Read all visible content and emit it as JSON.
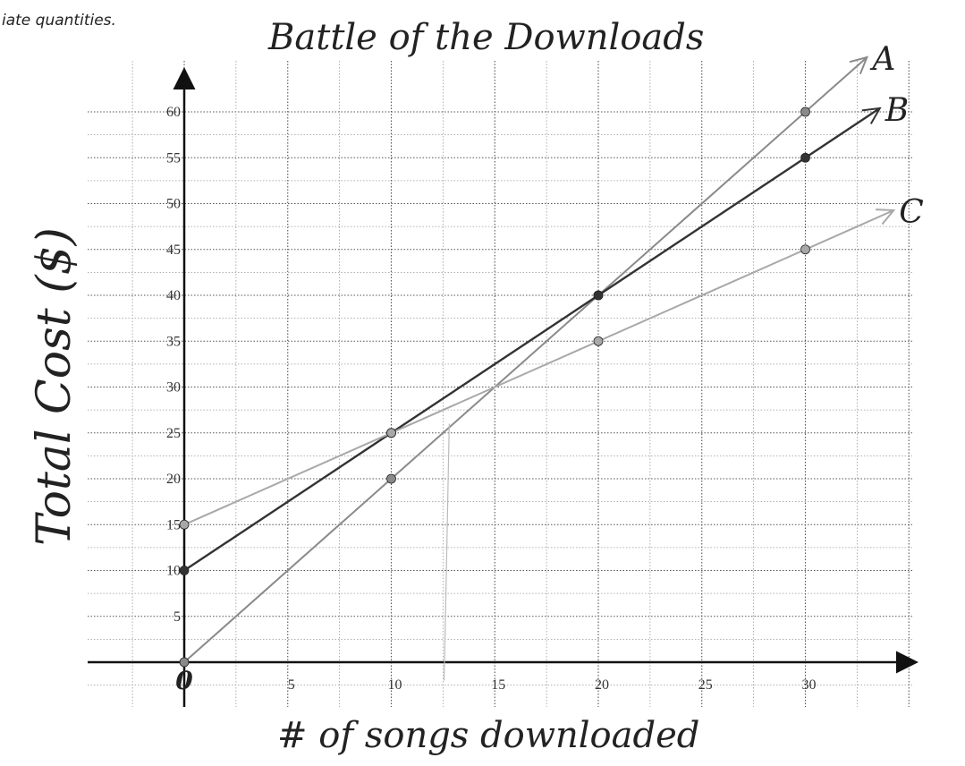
{
  "page": {
    "prompt_fragment": "iate quantities."
  },
  "chart_data": {
    "type": "line",
    "title": "Battle of the Downloads",
    "xlabel": "# of songs downloaded",
    "ylabel": "Total Cost ($)",
    "xlim": [
      0,
      35
    ],
    "ylim": [
      0,
      65
    ],
    "x_ticks": [
      5,
      10,
      15,
      20,
      25,
      30
    ],
    "y_ticks": [
      5,
      10,
      15,
      20,
      25,
      30,
      35,
      40,
      45,
      50,
      55,
      60
    ],
    "origin_label": "0",
    "grid": true,
    "series": [
      {
        "name": "A",
        "color": "#8a8a8a",
        "x": [
          0,
          10,
          20,
          30
        ],
        "y": [
          0,
          20,
          40,
          60
        ]
      },
      {
        "name": "B",
        "color": "#333333",
        "x": [
          0,
          10,
          20,
          30
        ],
        "y": [
          10,
          25,
          40,
          55
        ]
      },
      {
        "name": "C",
        "color": "#a8a8a8",
        "x": [
          0,
          10,
          20,
          30
        ],
        "y": [
          15,
          25,
          35,
          45
        ]
      }
    ]
  }
}
